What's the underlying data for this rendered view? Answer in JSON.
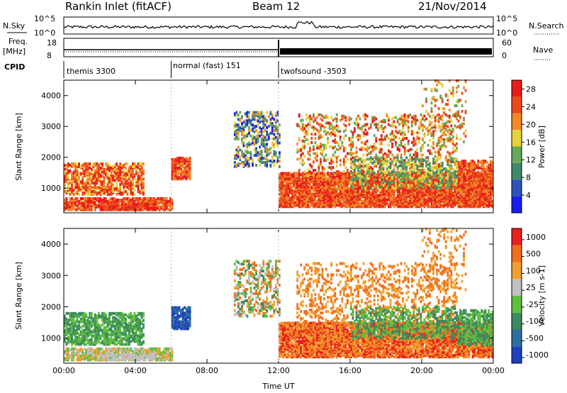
{
  "header": {
    "station": "Rankin Inlet (fitACF)",
    "beam": "Beam 12",
    "date": "21/Nov/2014"
  },
  "strips": {
    "nsky_label": "N.Sky",
    "nsearch_label": "N.Search",
    "nsky_ticks": [
      "10^5",
      "10^0"
    ],
    "nsearch_ticks": [
      "10^5",
      "10^0"
    ],
    "freq_label_1": "Freq.",
    "freq_label_2": "[MHz]",
    "freq_ticks": [
      "18",
      "8"
    ],
    "nave_label": "Nave",
    "nave_ticks": [
      "60",
      "0"
    ],
    "cpid_label": "CPID",
    "cpid_segments": [
      {
        "label": "themis 3300",
        "start_hour": 0.0,
        "end_hour": 6.0
      },
      {
        "label": "normal (fast) 151",
        "start_hour": 6.0,
        "end_hour": 12.0
      },
      {
        "label": "twofsound -3503",
        "start_hour": 12.0,
        "end_hour": 24.0
      }
    ]
  },
  "chart_data": [
    {
      "type": "heatmap",
      "quantity": "Power",
      "ylabel": "Slant Range [km]",
      "ylim": [
        200,
        4500
      ],
      "y_ticks": [
        1000,
        2000,
        3000,
        4000
      ],
      "x_ticks": [
        "00:00",
        "04:00",
        "08:00",
        "12:00",
        "16:00",
        "20:00",
        "00:00"
      ],
      "xlim_hours": [
        0,
        24
      ],
      "colorbar": {
        "label": "Power [dB]",
        "ticks": [
          4,
          8,
          12,
          16,
          20,
          24,
          28
        ],
        "range": [
          0,
          30
        ],
        "colors": [
          "#1c1cf0",
          "#2d53b8",
          "#3e8a6b",
          "#68a85c",
          "#e8d23a",
          "#f08a28",
          "#ec4a1c",
          "#e81c1c"
        ]
      }
    },
    {
      "type": "heatmap",
      "quantity": "Velocity",
      "ylabel": "Slant Range [km]",
      "xlabel": "Time UT",
      "ylim": [
        200,
        4500
      ],
      "y_ticks": [
        1000,
        2000,
        3000,
        4000
      ],
      "x_ticks": [
        "00:00",
        "04:00",
        "08:00",
        "12:00",
        "16:00",
        "20:00",
        "00:00"
      ],
      "xlim_hours": [
        0,
        24
      ],
      "colorbar": {
        "label": "Velocity [m s-1]",
        "ticks": [
          "1000",
          "500",
          "100",
          "25",
          "-25",
          "-100",
          "-500",
          "-1000"
        ],
        "colors": [
          "#1f3fbf",
          "#2f6f9f",
          "#3f8a5f",
          "#5fbf3f",
          "#c0c0c0",
          "#f0a030",
          "#f07020",
          "#e82020"
        ]
      }
    }
  ],
  "icons": {
    "nsky_line": "solid-line-icon",
    "nsearch_line": "dotted-line-icon",
    "nave_line": "dotted-line-icon"
  }
}
